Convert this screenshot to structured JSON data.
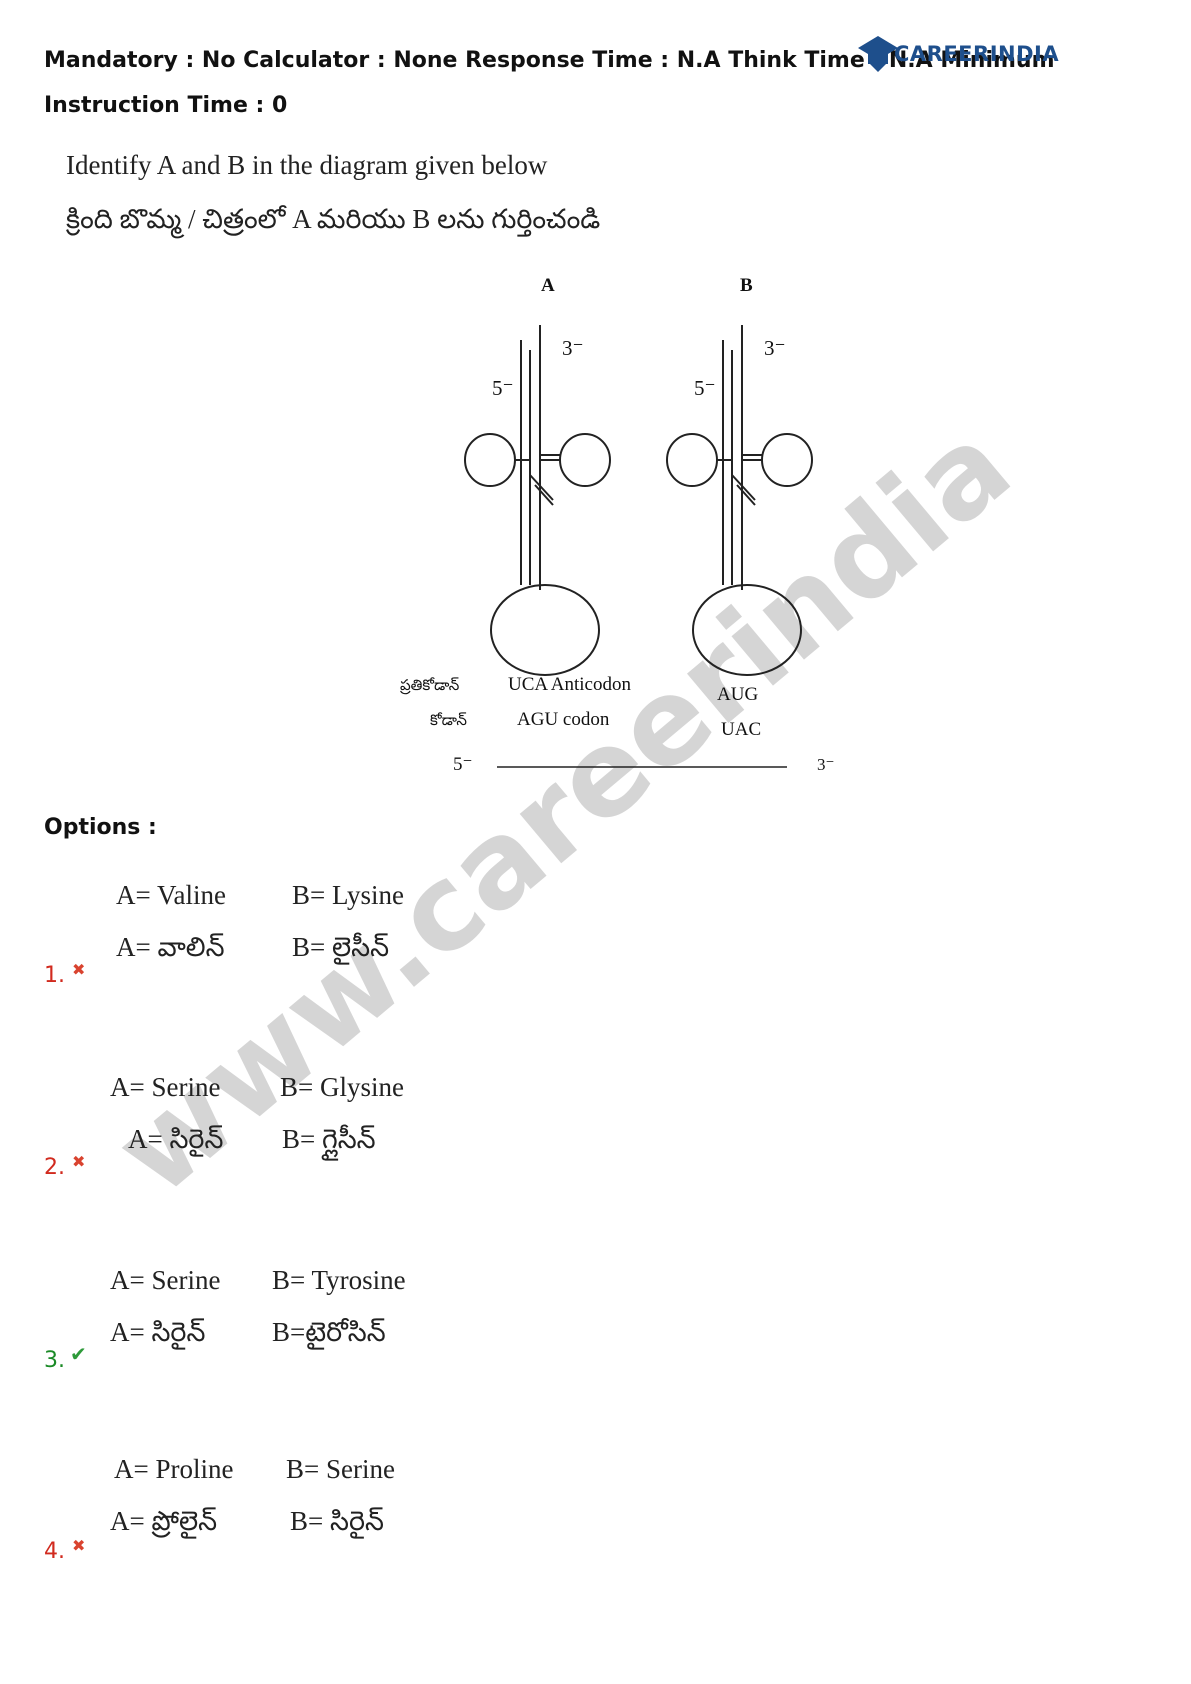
{
  "meta": {
    "line": "Mandatory : No Calculator : None Response Time : N.A Think Time : N.A Minimum Instruction Time : 0"
  },
  "logo": {
    "text": "CAREERINDIA"
  },
  "watermark": {
    "text": "www.careerindia"
  },
  "question": {
    "english": "Identify A and B in the diagram given below",
    "telugu": "క్రింది బొమ్మ / చిత్రంలో A మరియు B లను గుర్తించండి"
  },
  "diagram": {
    "label_a": "A",
    "label_b": "B",
    "five_prime": "5⁻",
    "three_prime": "3⁻",
    "row1_telugu": "ప్రతికోడాన్",
    "row2_telugu": "కోడాన్",
    "a_anticodon": "UCA Anticodon",
    "a_codon": "AGU codon",
    "b_anticodon": "AUG",
    "b_codon": "UAC",
    "axis_left": "5⁻",
    "axis_right": "3⁻"
  },
  "options_label": "Options :",
  "options": [
    {
      "number": "1.",
      "status": "wrong",
      "mark": "✖",
      "a_en": "A= Valine",
      "b_en": "B= Lysine",
      "a_te": "A= వాలిన్",
      "b_te": "B= లైసీన్"
    },
    {
      "number": "2.",
      "status": "wrong",
      "mark": "✖",
      "a_en": "A= Serine",
      "b_en": "B= Glysine",
      "a_te": "A= సిరైన్",
      "b_te": "B= గ్లైసీన్"
    },
    {
      "number": "3.",
      "status": "correct",
      "mark": "✔",
      "a_en": "A= Serine",
      "b_en": "B= Tyrosine",
      "a_te": "A= సిరైన్",
      "b_te": "B=టైరోసిన్"
    },
    {
      "number": "4.",
      "status": "wrong",
      "mark": "✖",
      "a_en": "A= Proline",
      "b_en": "B= Serine",
      "a_te": "A= ప్రోలైన్",
      "b_te": "B= సిరైన్"
    }
  ],
  "colors": {
    "wrong": "#d12a1e",
    "correct": "#1a8a26",
    "logo": "#1e4f8c",
    "watermark": "#c8c8c8"
  }
}
